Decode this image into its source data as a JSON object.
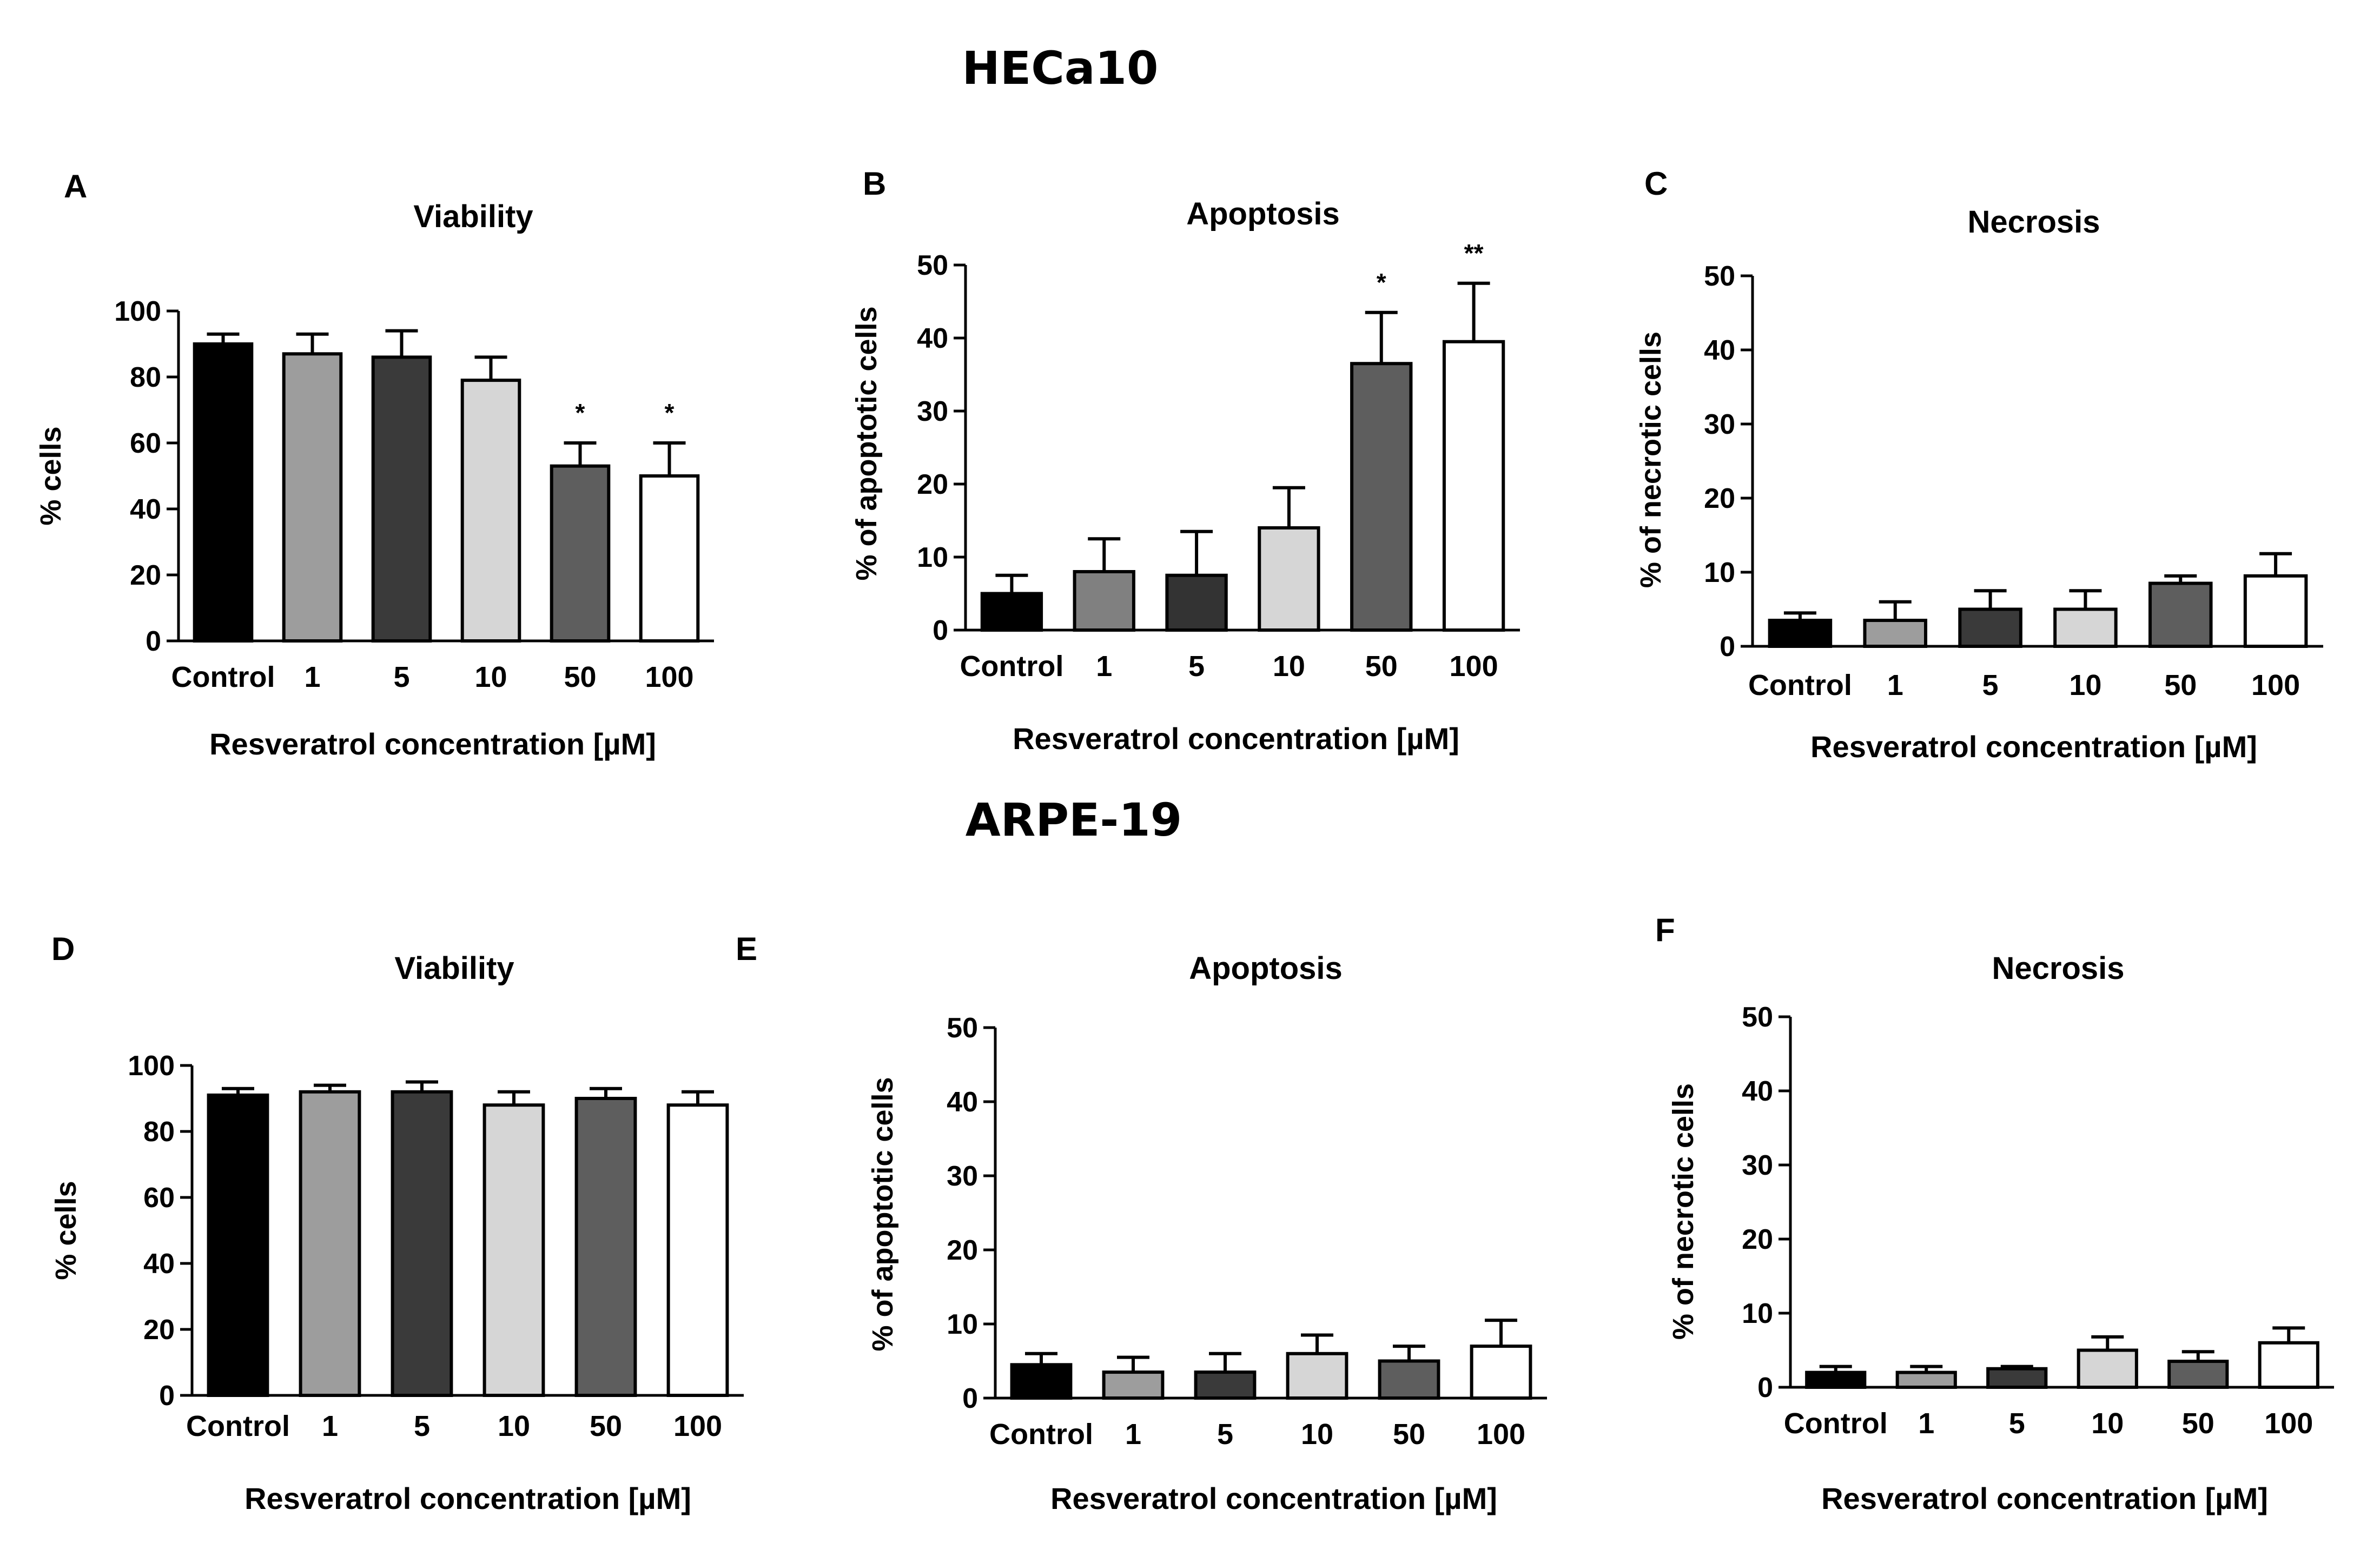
{
  "figure": {
    "top_title": "HECa10",
    "bottom_title": "ARPE-19"
  },
  "chart_data": [
    {
      "panel": "A",
      "type": "bar",
      "title": "Viability",
      "categories": [
        "Control",
        "1",
        "5",
        "10",
        "50",
        "100"
      ],
      "values": [
        90,
        87,
        86,
        79,
        53,
        50
      ],
      "errors": [
        3,
        6,
        8,
        7,
        7,
        10
      ],
      "significance": [
        "",
        "",
        "",
        "",
        "*",
        "*"
      ],
      "colors": [
        "#000000",
        "#9d9d9d",
        "#3a3a3a",
        "#d6d6d6",
        "#5e5e5e",
        "#ffffff"
      ],
      "xlabel": "Resveratrol concentration [µM]",
      "ylabel": "% cells",
      "ylim": [
        0,
        100
      ],
      "yticks": [
        0,
        20,
        40,
        60,
        80,
        100
      ]
    },
    {
      "panel": "B",
      "type": "bar",
      "title": "Apoptosis",
      "categories": [
        "Control",
        "1",
        "5",
        "10",
        "50",
        "100"
      ],
      "values": [
        5,
        8,
        7.5,
        14,
        36.5,
        39.5
      ],
      "errors": [
        2.5,
        4.5,
        6,
        5.5,
        7,
        8
      ],
      "significance": [
        "",
        "",
        "",
        "",
        "*",
        "**"
      ],
      "colors": [
        "#000000",
        "#808080",
        "#333333",
        "#d6d6d6",
        "#5e5e5e",
        "#ffffff"
      ],
      "xlabel": "Resveratrol concentration [µM]",
      "ylabel": "% of apoptotic cells",
      "ylim": [
        0,
        50
      ],
      "yticks": [
        0,
        10,
        20,
        30,
        40,
        50
      ]
    },
    {
      "panel": "C",
      "type": "bar",
      "title": "Necrosis",
      "categories": [
        "Control",
        "1",
        "5",
        "10",
        "50",
        "100"
      ],
      "values": [
        3.5,
        3.5,
        5,
        5,
        8.5,
        9.5
      ],
      "errors": [
        1,
        2.5,
        2.5,
        2.5,
        1,
        3
      ],
      "significance": [
        "",
        "",
        "",
        "",
        "",
        ""
      ],
      "colors": [
        "#000000",
        "#9d9d9d",
        "#3a3a3a",
        "#d6d6d6",
        "#5e5e5e",
        "#ffffff"
      ],
      "xlabel": "Resveratrol concentration [µM]",
      "ylabel": "% of necrotic cells",
      "ylim": [
        0,
        50
      ],
      "yticks": [
        0,
        10,
        20,
        30,
        40,
        50
      ]
    },
    {
      "panel": "D",
      "type": "bar",
      "title": "Viability",
      "categories": [
        "Control",
        "1",
        "5",
        "10",
        "50",
        "100"
      ],
      "values": [
        91,
        92,
        92,
        88,
        90,
        88
      ],
      "errors": [
        2,
        2,
        3,
        4,
        3,
        4
      ],
      "significance": [
        "",
        "",
        "",
        "",
        "",
        ""
      ],
      "colors": [
        "#000000",
        "#9d9d9d",
        "#3a3a3a",
        "#d6d6d6",
        "#5e5e5e",
        "#ffffff"
      ],
      "xlabel": "Resveratrol concentration [µM]",
      "ylabel": "% cells",
      "ylim": [
        0,
        100
      ],
      "yticks": [
        0,
        20,
        40,
        60,
        80,
        100
      ]
    },
    {
      "panel": "E",
      "type": "bar",
      "title": "Apoptosis",
      "categories": [
        "Control",
        "1",
        "5",
        "10",
        "50",
        "100"
      ],
      "values": [
        4.5,
        3.5,
        3.5,
        6,
        5,
        7
      ],
      "errors": [
        1.5,
        2,
        2.5,
        2.5,
        2,
        3.5
      ],
      "significance": [
        "",
        "",
        "",
        "",
        "",
        ""
      ],
      "colors": [
        "#000000",
        "#9d9d9d",
        "#3a3a3a",
        "#d6d6d6",
        "#5e5e5e",
        "#ffffff"
      ],
      "xlabel": "Resveratrol concentration [µM]",
      "ylabel": "% of apoptotic cells",
      "ylim": [
        0,
        50
      ],
      "yticks": [
        0,
        10,
        20,
        30,
        40,
        50
      ]
    },
    {
      "panel": "F",
      "type": "bar",
      "title": "Necrosis",
      "categories": [
        "Control",
        "1",
        "5",
        "10",
        "50",
        "100"
      ],
      "values": [
        2,
        2,
        2.5,
        5,
        3.5,
        6
      ],
      "errors": [
        0.8,
        0.8,
        0.3,
        1.8,
        1.3,
        2
      ],
      "significance": [
        "",
        "",
        "",
        "",
        "",
        ""
      ],
      "colors": [
        "#000000",
        "#9d9d9d",
        "#3a3a3a",
        "#d6d6d6",
        "#5e5e5e",
        "#ffffff"
      ],
      "xlabel": "Resveratrol concentration [µM]",
      "ylabel": "% of necrotic cells",
      "ylim": [
        0,
        50
      ],
      "yticks": [
        0,
        10,
        20,
        30,
        40,
        50
      ]
    }
  ]
}
